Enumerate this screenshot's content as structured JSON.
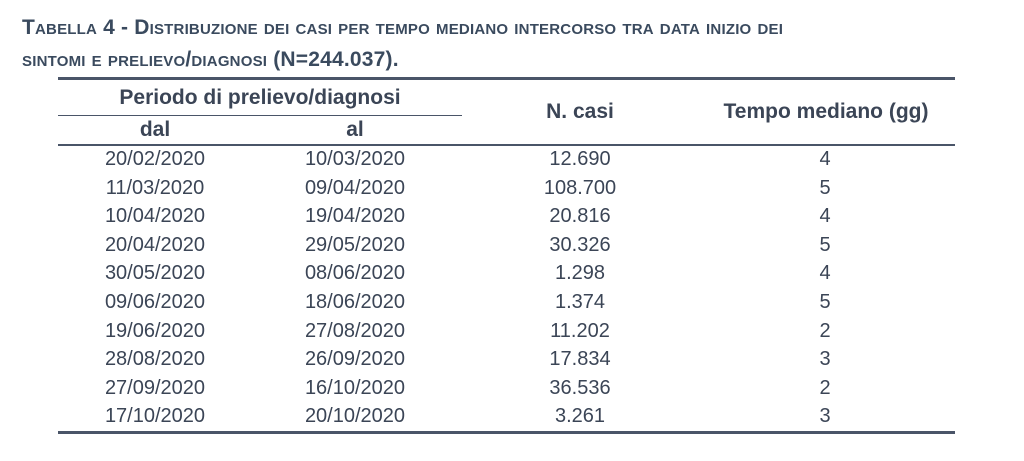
{
  "title": {
    "line1": "Tabella 4 - Distribuzione dei casi per tempo mediano intercorso tra data inizio dei",
    "line2": "sintomi e prelievo/diagnosi (N=244.037)."
  },
  "table": {
    "headers": {
      "period": "Periodo di prelievo/diagnosi",
      "from": "dal",
      "to": "al",
      "cases": "N. casi",
      "median": "Tempo mediano (gg)"
    },
    "rows": [
      [
        "20/02/2020",
        "10/03/2020",
        "12.690",
        "4"
      ],
      [
        "11/03/2020",
        "09/04/2020",
        "108.700",
        "5"
      ],
      [
        "10/04/2020",
        "19/04/2020",
        "20.816",
        "4"
      ],
      [
        "20/04/2020",
        "29/05/2020",
        "30.326",
        "5"
      ],
      [
        "30/05/2020",
        "08/06/2020",
        "1.298",
        "4"
      ],
      [
        "09/06/2020",
        "18/06/2020",
        "1.374",
        "5"
      ],
      [
        "19/06/2020",
        "27/08/2020",
        "11.202",
        "2"
      ],
      [
        "28/08/2020",
        "26/09/2020",
        "17.834",
        "3"
      ],
      [
        "27/09/2020",
        "16/10/2020",
        "36.536",
        "2"
      ],
      [
        "17/10/2020",
        "20/10/2020",
        "3.261",
        "3"
      ]
    ]
  }
}
